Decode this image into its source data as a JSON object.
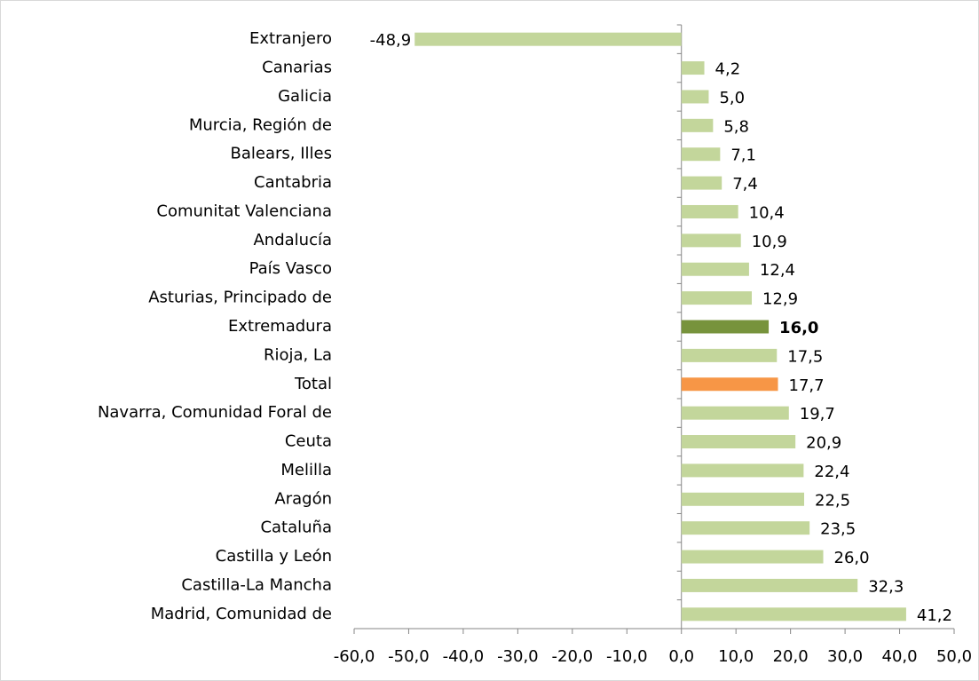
{
  "chart_data": {
    "type": "hbar",
    "categories": [
      "Extranjero",
      "Canarias",
      "Galicia",
      "Murcia, Región de",
      "Balears, Illes",
      "Cantabria",
      "Comunitat Valenciana",
      "Andalucía",
      "País Vasco",
      "Asturias, Principado de",
      "Extremadura",
      "Rioja, La",
      "Total",
      "Navarra, Comunidad Foral de",
      "Ceuta",
      "Melilla",
      "Aragón",
      "Cataluña",
      "Castilla y León",
      "Castilla-La Mancha",
      "Madrid, Comunidad de"
    ],
    "values": [
      -48.9,
      4.2,
      5.0,
      5.8,
      7.1,
      7.4,
      10.4,
      10.9,
      12.4,
      12.9,
      16.0,
      17.5,
      17.7,
      19.7,
      20.9,
      22.4,
      22.5,
      23.5,
      26.0,
      32.3,
      41.2
    ],
    "value_labels": [
      "-48,9",
      "4,2",
      "5,0",
      "5,8",
      "7,1",
      "7,4",
      "10,4",
      "10,9",
      "12,4",
      "12,9",
      "16,0",
      "17,5",
      "17,7",
      "19,7",
      "20,9",
      "22,4",
      "22,5",
      "23,5",
      "26,0",
      "32,3",
      "41,2"
    ],
    "colors": [
      "#c3d69b",
      "#c3d69b",
      "#c3d69b",
      "#c3d69b",
      "#c3d69b",
      "#c3d69b",
      "#c3d69b",
      "#c3d69b",
      "#c3d69b",
      "#c3d69b",
      "#77933c",
      "#c3d69b",
      "#f79646",
      "#c3d69b",
      "#c3d69b",
      "#c3d69b",
      "#c3d69b",
      "#c3d69b",
      "#c3d69b",
      "#c3d69b",
      "#c3d69b"
    ],
    "bold_labels": [
      false,
      false,
      false,
      false,
      false,
      false,
      false,
      false,
      false,
      false,
      true,
      false,
      false,
      false,
      false,
      false,
      false,
      false,
      false,
      false,
      false
    ],
    "xlim": [
      -60,
      50
    ],
    "xticks": [
      {
        "value": -60,
        "label": "-60,0"
      },
      {
        "value": -50,
        "label": "-50,0"
      },
      {
        "value": -40,
        "label": "-40,0"
      },
      {
        "value": -30,
        "label": "-30,0"
      },
      {
        "value": -20,
        "label": "-20,0"
      },
      {
        "value": -10,
        "label": "-10,0"
      },
      {
        "value": 0,
        "label": "0,0"
      },
      {
        "value": 10,
        "label": "10,0"
      },
      {
        "value": 20,
        "label": "20,0"
      },
      {
        "value": 30,
        "label": "30,0"
      },
      {
        "value": 40,
        "label": "40,0"
      },
      {
        "value": 50,
        "label": "50,0"
      }
    ],
    "grid": false
  }
}
